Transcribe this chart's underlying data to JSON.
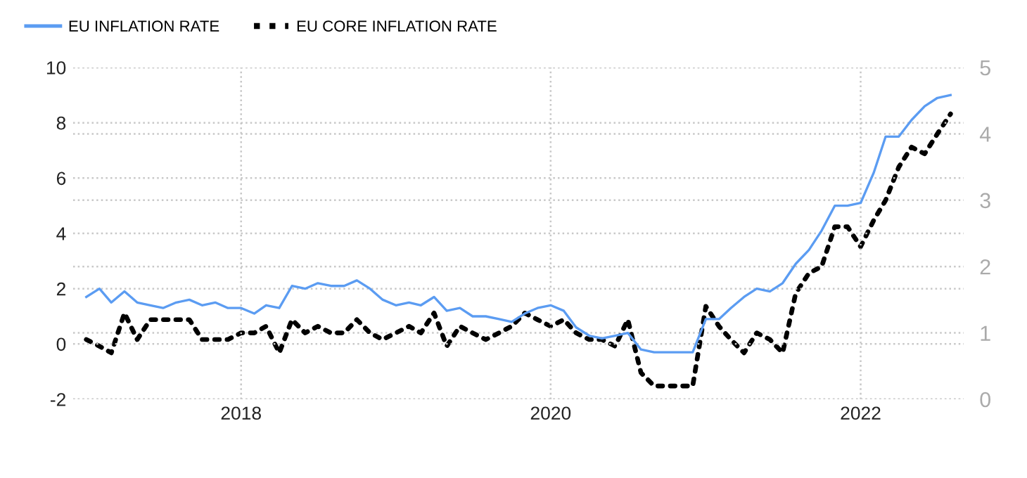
{
  "chart_data": {
    "type": "line",
    "legend": "top left",
    "grid": true,
    "x": [
      "2017-01",
      "2017-02",
      "2017-03",
      "2017-04",
      "2017-05",
      "2017-06",
      "2017-07",
      "2017-08",
      "2017-09",
      "2017-10",
      "2017-11",
      "2017-12",
      "2018-01",
      "2018-02",
      "2018-03",
      "2018-04",
      "2018-05",
      "2018-06",
      "2018-07",
      "2018-08",
      "2018-09",
      "2018-10",
      "2018-11",
      "2018-12",
      "2019-01",
      "2019-02",
      "2019-03",
      "2019-04",
      "2019-05",
      "2019-06",
      "2019-07",
      "2019-08",
      "2019-09",
      "2019-10",
      "2019-11",
      "2019-12",
      "2020-01",
      "2020-02",
      "2020-03",
      "2020-04",
      "2020-05",
      "2020-06",
      "2020-07",
      "2020-08",
      "2020-09",
      "2020-10",
      "2020-11",
      "2020-12",
      "2021-01",
      "2021-02",
      "2021-03",
      "2021-04",
      "2021-05",
      "2021-06",
      "2021-07",
      "2021-08",
      "2021-09",
      "2021-10",
      "2021-11",
      "2021-12",
      "2022-01",
      "2022-02",
      "2022-03",
      "2022-04",
      "2022-05",
      "2022-06",
      "2022-07",
      "2022-08"
    ],
    "series": [
      {
        "name": "EU INFLATION RATE",
        "color": "#5b9cf2",
        "line_style": "solid",
        "values": [
          1.7,
          2.0,
          1.5,
          1.9,
          1.5,
          1.4,
          1.3,
          1.5,
          1.6,
          1.4,
          1.5,
          1.3,
          1.3,
          1.1,
          1.4,
          1.3,
          2.1,
          2.0,
          2.2,
          2.1,
          2.1,
          2.3,
          2.0,
          1.6,
          1.4,
          1.5,
          1.4,
          1.7,
          1.2,
          1.3,
          1.0,
          1.0,
          0.9,
          0.8,
          1.1,
          1.3,
          1.4,
          1.2,
          0.6,
          0.3,
          0.2,
          0.3,
          0.4,
          -0.2,
          -0.3,
          -0.3,
          -0.3,
          -0.3,
          0.9,
          0.9,
          1.3,
          1.7,
          2.0,
          1.9,
          2.2,
          2.9,
          3.4,
          4.1,
          5.0,
          5.0,
          5.1,
          6.2,
          7.5,
          7.5,
          8.1,
          8.6,
          8.9,
          9.0
        ]
      },
      {
        "name": "EU CORE INFLATION RATE",
        "color": "#000000",
        "line_style": "dotted",
        "axis": "y2",
        "values": [
          0.9,
          0.8,
          0.7,
          1.3,
          0.9,
          1.2,
          1.2,
          1.2,
          1.2,
          0.9,
          0.9,
          0.9,
          1.0,
          1.0,
          1.1,
          0.7,
          1.2,
          1.0,
          1.1,
          1.0,
          1.0,
          1.2,
          1.0,
          0.9,
          1.0,
          1.1,
          1.0,
          1.3,
          0.8,
          1.1,
          1.0,
          0.9,
          1.0,
          1.1,
          1.3,
          1.2,
          1.1,
          1.2,
          1.0,
          0.9,
          0.9,
          0.8,
          1.2,
          0.4,
          0.2,
          0.2,
          0.2,
          0.2,
          1.4,
          1.1,
          0.9,
          0.7,
          1.0,
          0.9,
          0.7,
          1.6,
          1.9,
          2.0,
          2.6,
          2.6,
          2.3,
          2.7,
          3.0,
          3.5,
          3.8,
          3.7,
          4.0,
          4.3
        ]
      }
    ],
    "xlim": [
      "2016-12-01",
      "2022-09-01"
    ],
    "xticks": [
      {
        "value": "2018-01-01",
        "label": "2018"
      },
      {
        "value": "2020-01-01",
        "label": "2020"
      },
      {
        "value": "2022-01-01",
        "label": "2022"
      }
    ],
    "ylim": [
      -2,
      10
    ],
    "yticks": [
      -2,
      0,
      2,
      4,
      6,
      8,
      10
    ],
    "y2lim": [
      0,
      5
    ],
    "y2ticks": [
      0,
      1,
      2,
      3,
      4,
      5
    ]
  }
}
